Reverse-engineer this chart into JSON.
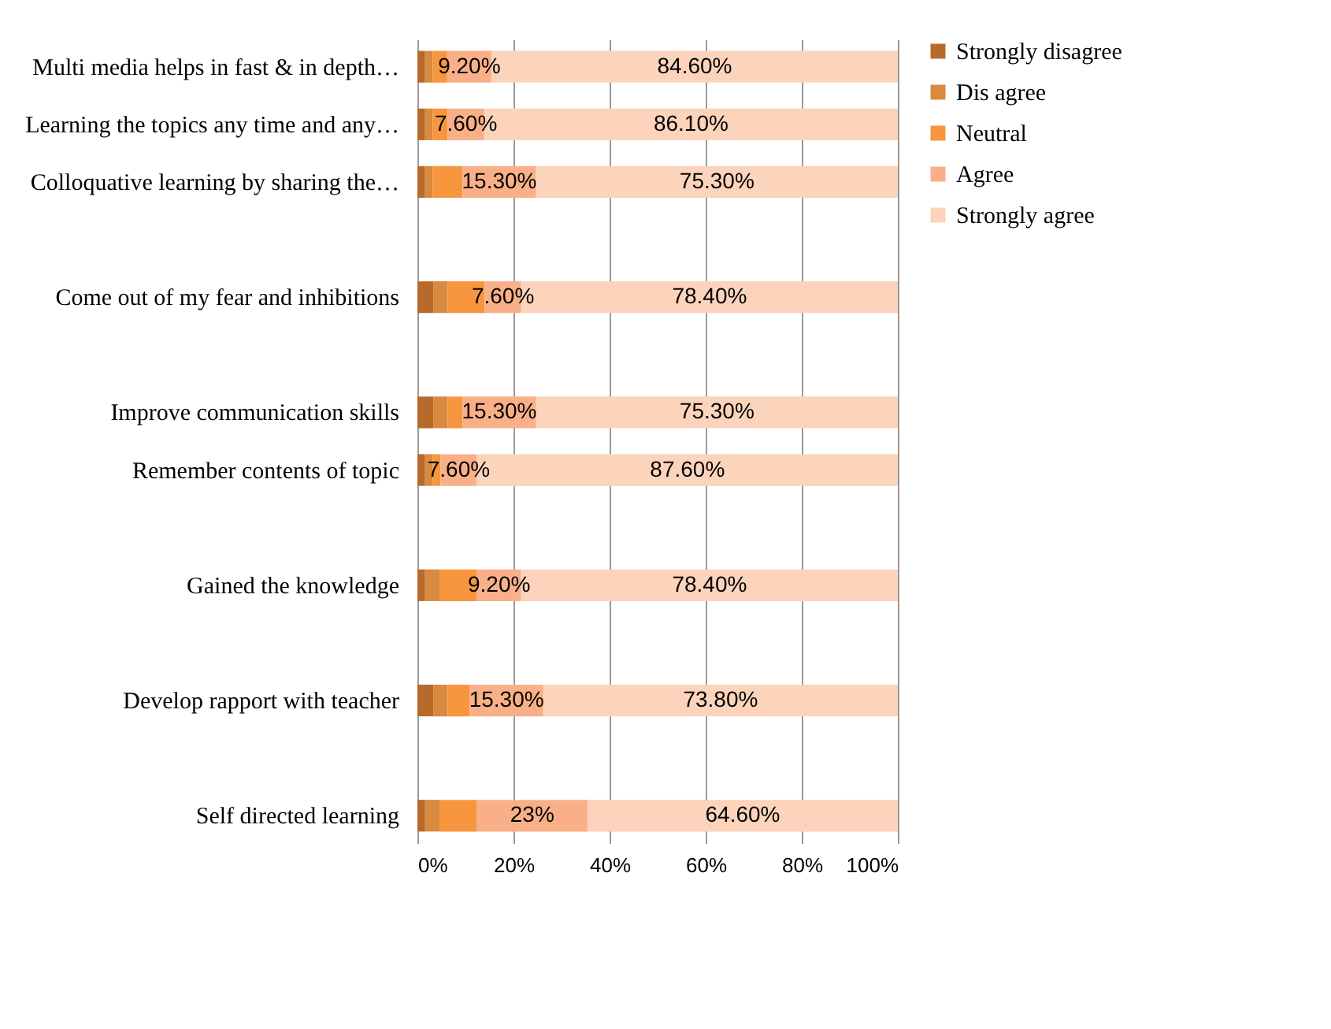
{
  "chart_data": {
    "type": "bar",
    "orientation": "horizontal",
    "stacked": true,
    "categories": [
      "Multi media helps in fast & in depth…",
      "Learning the topics any time and any…",
      "Colloquative learning by sharing the…",
      null,
      "Come out of my fear and inhibitions",
      null,
      "Improve communication skills",
      "Remember contents of topic",
      null,
      "Gained the knowledge",
      null,
      "Develop rapport with teacher",
      null,
      "Self directed learning"
    ],
    "series": [
      {
        "name": "Strongly disagree",
        "color": "#b86a2a",
        "values": [
          1.6,
          1.6,
          1.6,
          null,
          3.3,
          null,
          3.3,
          1.6,
          null,
          1.6,
          null,
          3.3,
          null,
          1.6
        ]
      },
      {
        "name": "Dis agree",
        "color": "#d98a3f",
        "values": [
          1.6,
          1.6,
          1.6,
          null,
          3,
          null,
          3,
          1.6,
          null,
          3,
          null,
          3,
          null,
          3
        ]
      },
      {
        "name": "Neutral",
        "color": "#f7963f",
        "values": [
          3,
          3.1,
          6.2,
          null,
          7.7,
          null,
          3.1,
          1.6,
          null,
          7.8,
          null,
          4.6,
          null,
          7.8
        ]
      },
      {
        "name": "Agree",
        "color": "#f9b088",
        "values": [
          9.2,
          7.6,
          15.3,
          null,
          7.6,
          null,
          15.3,
          7.6,
          null,
          9.2,
          null,
          15.3,
          null,
          23
        ],
        "value_labels": [
          "9.20%",
          "7.60%",
          "15.30%",
          null,
          "7.60%",
          null,
          "15.30%",
          "7.60%",
          null,
          "9.20%",
          null,
          "15.30%",
          null,
          "23%"
        ]
      },
      {
        "name": "Strongly agree",
        "color": "#fcd3bb",
        "values": [
          84.6,
          86.1,
          75.3,
          null,
          78.4,
          null,
          75.3,
          87.6,
          null,
          78.4,
          null,
          73.8,
          null,
          64.6
        ],
        "value_labels": [
          "84.60%",
          "86.10%",
          "75.30%",
          null,
          "78.40%",
          null,
          "75.30%",
          "87.60%",
          null,
          "78.40%",
          null,
          "73.80%",
          null,
          "64.60%"
        ]
      }
    ],
    "xlim": [
      0,
      100
    ],
    "xticks": [
      {
        "value": 0,
        "label": "0%"
      },
      {
        "value": 20,
        "label": "20%"
      },
      {
        "value": 40,
        "label": "40%"
      },
      {
        "value": 60,
        "label": "60%"
      },
      {
        "value": 80,
        "label": "80%"
      },
      {
        "value": 100,
        "label": "100%"
      }
    ],
    "grid": "x",
    "legend": "right"
  }
}
